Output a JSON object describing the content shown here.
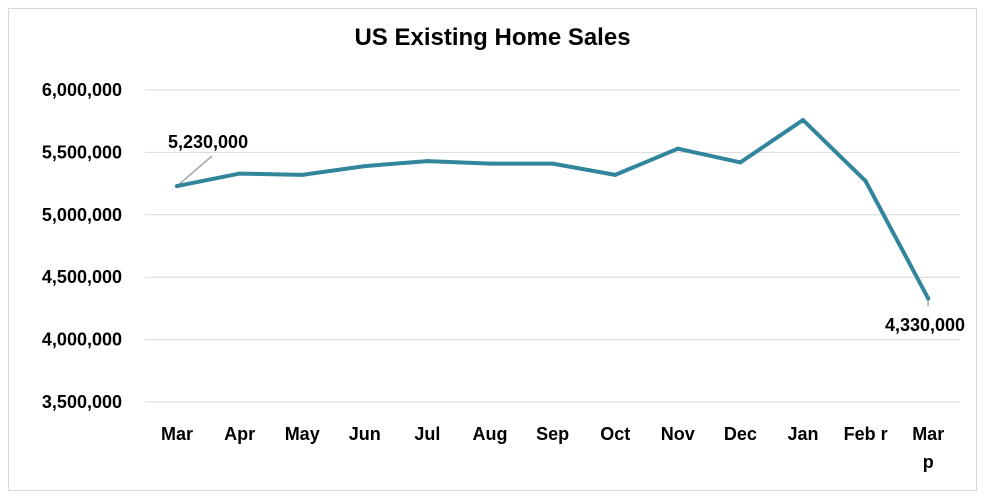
{
  "chart_data": {
    "type": "line",
    "title": "US Existing Home Sales",
    "xlabel": "",
    "ylabel": "",
    "categories": [
      "Mar",
      "Apr",
      "May",
      "Jun",
      "Jul",
      "Aug",
      "Sep",
      "Oct",
      "Nov",
      "Dec",
      "Jan",
      "Feb r",
      "Mar p"
    ],
    "values": [
      5230000,
      5330000,
      5320000,
      5390000,
      5430000,
      5410000,
      5410000,
      5320000,
      5530000,
      5420000,
      5760000,
      5270000,
      4330000
    ],
    "ylim": [
      3500000,
      6000000
    ],
    "yticks": [
      3500000,
      4000000,
      4500000,
      5000000,
      5500000,
      6000000
    ],
    "ytick_labels": [
      "3,500,000",
      "4,000,000",
      "4,500,000",
      "5,000,000",
      "5,500,000",
      "6,000,000"
    ],
    "grid": true,
    "legend": "none",
    "line_color": "#31859c",
    "annotations": [
      {
        "index": 0,
        "text": "5,230,000"
      },
      {
        "index": 12,
        "text": "4,330,000"
      }
    ]
  }
}
